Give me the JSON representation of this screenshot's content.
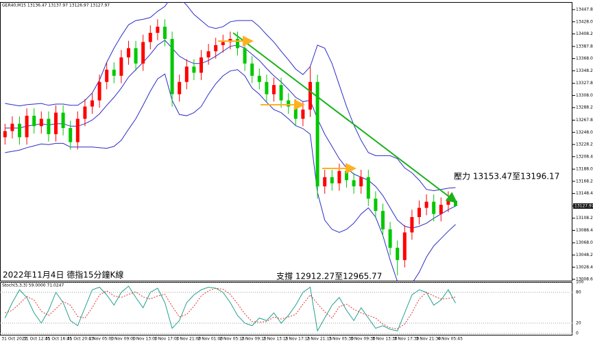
{
  "chart_data": [
    {
      "type": "candlestick",
      "title": "GER40,M15  13136.47 13137.97 13126.97 13127.97",
      "annotations": [
        "2022年11月4日 德指15分鐘K線",
        "支撐 12912.27至12965.77",
        "壓力 13153.47至13196.17"
      ],
      "last_price": {
        "value": 13127.97,
        "label": "13127.97"
      },
      "ylim": [
        13006.4,
        13460.1
      ],
      "yticks": [
        {
          "value": 13447.8,
          "label": "13447.80"
        },
        {
          "value": 13428,
          "label": "13428.00"
        },
        {
          "value": 13408.2,
          "label": "13408.20"
        },
        {
          "value": 13387.8,
          "label": "13387.80"
        },
        {
          "value": 13368,
          "label": "13368.00"
        },
        {
          "value": 13348.2,
          "label": "13348.20"
        },
        {
          "value": 13327.8,
          "label": "13327.80"
        },
        {
          "value": 13308,
          "label": "13308.00"
        },
        {
          "value": 13288.2,
          "label": "13288.20"
        },
        {
          "value": 13267.8,
          "label": "13267.80"
        },
        {
          "value": 13248,
          "label": "13248.00"
        },
        {
          "value": 13228.2,
          "label": "13228.20"
        },
        {
          "value": 13208.4,
          "label": "13208.40"
        },
        {
          "value": 13188,
          "label": "13188.00"
        },
        {
          "value": 13168.2,
          "label": "13168.20"
        },
        {
          "value": 13148.4,
          "label": "13148.40"
        },
        {
          "value": 13128,
          "label": "13128.00"
        },
        {
          "value": 13108.2,
          "label": "13108.20"
        },
        {
          "value": 13088.4,
          "label": "13088.40"
        },
        {
          "value": 13068,
          "label": "13068.00"
        },
        {
          "value": 13048.2,
          "label": "13048.20"
        },
        {
          "value": 13028.4,
          "label": "13028.40"
        },
        {
          "value": 13008.6,
          "label": "13008.60"
        }
      ],
      "categories": [
        "31 Oct 2022",
        null,
        null,
        "31 Oct 12:45",
        null,
        null,
        "31 Oct 16:45",
        null,
        null,
        "31 Oct 20:45",
        null,
        null,
        "1 Nov 05:00",
        null,
        null,
        "1 Nov 09:00",
        null,
        null,
        "1 Nov 13:00",
        null,
        null,
        "1 Nov 17:00",
        null,
        null,
        "1 Nov 21:00",
        null,
        null,
        "2 Nov 01:00",
        null,
        null,
        "2 Nov 05:15",
        null,
        null,
        "2 Nov 09:15",
        null,
        null,
        "2 Nov 13:15",
        null,
        null,
        "2 Nov 17:15",
        null,
        null,
        "2 Nov 21:15",
        null,
        null,
        "3 Nov 05:30",
        null,
        null,
        "3 Nov 09:30",
        null,
        null,
        "3 Nov 13:30",
        null,
        null,
        "3 Nov 17:30",
        null,
        null,
        "3 Nov 21:30",
        null,
        null,
        "4 Nov 05:45",
        null,
        null
      ],
      "open": [
        13240,
        13250,
        13262,
        13240,
        13275,
        13258,
        13270,
        13245,
        13280,
        13255,
        13232,
        13270,
        13290,
        13300,
        13330,
        13350,
        13340,
        13370,
        13385,
        13360,
        13395,
        13410,
        13420,
        13400,
        13310,
        13330,
        13355,
        13345,
        13370,
        13380,
        13390,
        13395,
        13400,
        13385,
        13360,
        13340,
        13330,
        13310,
        13325,
        13300,
        13290,
        13270,
        13285,
        13330,
        13160,
        13175,
        13165,
        13185,
        13170,
        13160,
        13175,
        13140,
        13120,
        13090,
        13060,
        13040,
        13085,
        13110,
        13125,
        13135,
        13115,
        13130,
        13136.47
      ],
      "high": [
        13262,
        13274,
        13274,
        13287,
        13287,
        13282,
        13282,
        13292,
        13292,
        13267,
        13282,
        13302,
        13312,
        13342,
        13362,
        13362,
        13382,
        13397,
        13397,
        13407,
        13422,
        13432,
        13432,
        13412,
        13342,
        13367,
        13367,
        13382,
        13392,
        13402,
        13407,
        13412,
        13412,
        13397,
        13372,
        13352,
        13342,
        13337,
        13337,
        13312,
        13302,
        13297,
        13355,
        13342,
        13187,
        13187,
        13197,
        13197,
        13182,
        13187,
        13187,
        13152,
        13132,
        13102,
        13072,
        13097,
        13122,
        13137,
        13147,
        13147,
        13142,
        13152,
        13137.97
      ],
      "low": [
        13228,
        13238,
        13228,
        13228,
        13246,
        13246,
        13233,
        13233,
        13243,
        13220,
        13220,
        13258,
        13278,
        13288,
        13318,
        13328,
        13328,
        13358,
        13348,
        13348,
        13383,
        13398,
        13388,
        13290,
        13298,
        13318,
        13333,
        13333,
        13358,
        13368,
        13378,
        13383,
        13373,
        13348,
        13328,
        13318,
        13298,
        13298,
        13288,
        13278,
        13258,
        13258,
        13273,
        13140,
        13148,
        13153,
        13153,
        13158,
        13148,
        13148,
        13128,
        13108,
        13078,
        13048,
        13015,
        13028,
        13073,
        13098,
        13113,
        13103,
        13103,
        13118,
        13126.97
      ],
      "close": [
        13250,
        13262,
        13240,
        13275,
        13258,
        13270,
        13245,
        13280,
        13255,
        13232,
        13270,
        13290,
        13300,
        13330,
        13350,
        13340,
        13370,
        13385,
        13360,
        13395,
        13410,
        13420,
        13400,
        13310,
        13330,
        13355,
        13345,
        13370,
        13380,
        13390,
        13395,
        13400,
        13385,
        13360,
        13340,
        13330,
        13310,
        13325,
        13300,
        13290,
        13270,
        13285,
        13330,
        13160,
        13175,
        13165,
        13185,
        13170,
        13160,
        13175,
        13140,
        13120,
        13090,
        13060,
        13040,
        13085,
        13110,
        13125,
        13135,
        13115,
        13130,
        13140,
        13127.97
      ],
      "up_color": "#ff0000",
      "down_color": "#00c800",
      "band_color": "#2b2bc8",
      "upper": [
        13295,
        13293,
        13291,
        13293,
        13294,
        13295,
        13292,
        13294,
        13294,
        13292,
        13292,
        13300,
        13312,
        13333,
        13362,
        13385,
        13405,
        13423,
        13430,
        13432,
        13435,
        13445,
        13453,
        13470,
        13467,
        13455,
        13440,
        13430,
        13420,
        13417,
        13420,
        13428,
        13430,
        13430,
        13430,
        13420,
        13407,
        13395,
        13380,
        13366,
        13351,
        13342,
        13355,
        13390,
        13385,
        13360,
        13325,
        13290,
        13260,
        13235,
        13215,
        13210,
        13210,
        13210,
        13205,
        13190,
        13182,
        13170,
        13155,
        13153,
        13155,
        13157,
        13158
      ],
      "middle": [
        13255,
        13255,
        13255,
        13258,
        13260,
        13262,
        13260,
        13262,
        13262,
        13258,
        13258,
        13262,
        13268,
        13278,
        13292,
        13305,
        13320,
        13338,
        13350,
        13362,
        13375,
        13390,
        13398,
        13385,
        13372,
        13365,
        13360,
        13360,
        13365,
        13372,
        13380,
        13388,
        13390,
        13385,
        13375,
        13365,
        13352,
        13340,
        13330,
        13318,
        13305,
        13298,
        13300,
        13270,
        13245,
        13225,
        13205,
        13190,
        13180,
        13175,
        13170,
        13160,
        13145,
        13125,
        13105,
        13095,
        13092,
        13095,
        13100,
        13108,
        13115,
        13122,
        13128
      ],
      "lower": [
        13215,
        13217,
        13219,
        13223,
        13226,
        13229,
        13228,
        13230,
        13230,
        13224,
        13224,
        13224,
        13224,
        13223,
        13222,
        13225,
        13235,
        13253,
        13270,
        13292,
        13315,
        13335,
        13343,
        13300,
        13277,
        13275,
        13280,
        13290,
        13310,
        13327,
        13340,
        13348,
        13350,
        13340,
        13320,
        13310,
        13297,
        13285,
        13280,
        13270,
        13259,
        13254,
        13245,
        13150,
        13105,
        13090,
        13085,
        13090,
        13100,
        13115,
        13125,
        13110,
        13080,
        13040,
        13005,
        13000,
        13002,
        13020,
        13045,
        13063,
        13075,
        13087,
        13098
      ]
    },
    {
      "type": "line",
      "title": "Stoch(5,3,3) 59.0000 71.0247",
      "ylim": [
        0,
        100
      ],
      "yticks": [
        100,
        80,
        20,
        0
      ],
      "main_color": "#20a08c",
      "signal_color": "#e03030",
      "main": [
        30,
        60,
        85,
        70,
        40,
        20,
        45,
        80,
        60,
        25,
        15,
        50,
        85,
        90,
        75,
        55,
        80,
        92,
        70,
        50,
        80,
        88,
        60,
        10,
        25,
        60,
        75,
        85,
        90,
        88,
        80,
        60,
        35,
        20,
        15,
        30,
        25,
        40,
        20,
        35,
        55,
        80,
        90,
        5,
        30,
        55,
        70,
        45,
        25,
        50,
        30,
        10,
        15,
        8,
        5,
        40,
        75,
        85,
        80,
        55,
        65,
        85,
        59
      ],
      "signal": [
        40,
        45,
        58,
        72,
        65,
        43,
        35,
        48,
        62,
        55,
        33,
        30,
        50,
        75,
        83,
        73,
        70,
        76,
        81,
        71,
        67,
        73,
        76,
        53,
        32,
        37,
        53,
        73,
        83,
        88,
        86,
        76,
        58,
        38,
        23,
        22,
        23,
        32,
        28,
        32,
        37,
        57,
        75,
        58,
        42,
        30,
        52,
        57,
        47,
        40,
        35,
        30,
        18,
        11,
        9,
        18,
        40,
        67,
        80,
        73,
        67,
        68,
        71.0247
      ]
    }
  ]
}
